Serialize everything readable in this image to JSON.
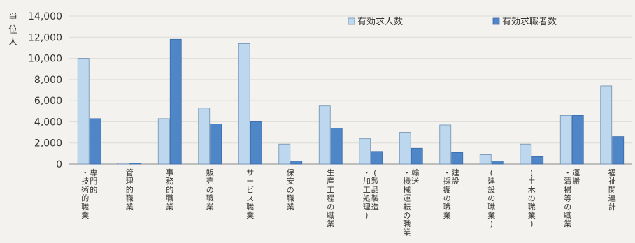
{
  "chart_data": {
    "type": "bar",
    "ylabel": "単位人",
    "ylim": [
      0,
      14000
    ],
    "yticks": [
      0,
      2000,
      4000,
      6000,
      8000,
      10000,
      12000,
      14000
    ],
    "ytick_labels": [
      "0",
      "2,000",
      "4,000",
      "6,000",
      "8,000",
      "10,000",
      "12,000",
      "14,000"
    ],
    "grid": true,
    "legend_position": "top-right",
    "categories": [
      "専門的・技術的職業",
      "管理的職業",
      "事務的職業",
      "販売の職業",
      "サービス職業",
      "保安の職業",
      "生産工程の職業",
      "(製品製造・加工処理)",
      "輸送・機械運転の職業",
      "建設・採掘の職業",
      "(建設の職業)",
      "(土木の職業)",
      "運搬・清掃等の職業",
      "福祉関連計"
    ],
    "category_lines": [
      [
        "専門的",
        "・技術的職業"
      ],
      [
        "管理的職業"
      ],
      [
        "事務的職業"
      ],
      [
        "販売の職業"
      ],
      [
        "サービス職業"
      ],
      [
        "保安の職業"
      ],
      [
        "生産工程の職業"
      ],
      [
        "(製品製造",
        "・加工処理)"
      ],
      [
        "輸送",
        "・機械運転の職業"
      ],
      [
        "建設",
        "・採掘の職業"
      ],
      [
        "(建設の職業)"
      ],
      [
        "(土木の職業)"
      ],
      [
        "運搬",
        "・清掃等の職業"
      ],
      [
        "福祉関連計"
      ]
    ],
    "series": [
      {
        "name": "有効求人数",
        "color": "#bcd7ee",
        "values": [
          10000,
          100,
          4300,
          5300,
          11400,
          1900,
          5500,
          2400,
          3000,
          3700,
          900,
          1900,
          4600,
          7400
        ]
      },
      {
        "name": "有効求職者数",
        "color": "#4f86c8",
        "values": [
          4300,
          100,
          11800,
          3800,
          4000,
          300,
          3400,
          1200,
          1500,
          1100,
          300,
          700,
          4600,
          2600
        ]
      }
    ]
  }
}
